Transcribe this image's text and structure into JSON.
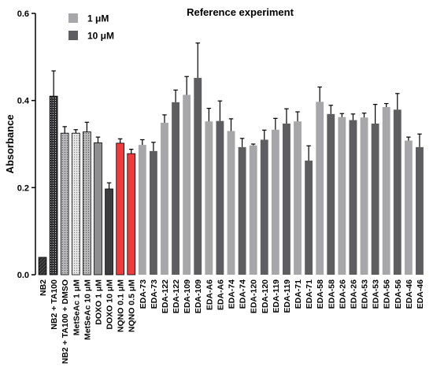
{
  "chart_data": {
    "type": "bar",
    "title": "Reference experiment",
    "xlabel": "",
    "ylabel": "Absorbance",
    "ylim": [
      0,
      0.6
    ],
    "yticks": [
      "0.0",
      "0.2",
      "0.4",
      "0.6"
    ],
    "grid": false,
    "legend": {
      "placement": "top-left",
      "entries": [
        {
          "label": "1 μM",
          "color": "#a7a7a9"
        },
        {
          "label": "10 μM",
          "color": "#5e5e60"
        }
      ]
    },
    "categories": [
      "NB2",
      "NB2 + TA100",
      "NB2 + TA100 + DMSO",
      "MetSeAc 1 μM",
      "MetSeAc 10 μM",
      "DOXO 1 μM",
      "DOXO 10 μM",
      "NQNO 0.1 μM",
      "NQNO 0.5 μM",
      "EDA-73",
      "EDA-73",
      "EDA-122",
      "EDA-122",
      "EDA-109",
      "EDA-109",
      "EDA-A6",
      "EDA-A6",
      "EDA-74",
      "EDA-74",
      "EDA-120",
      "EDA-120",
      "EDA-119",
      "EDA-119",
      "EDA-71",
      "EDA-71",
      "EDA-58",
      "EDA-58",
      "EDA-26",
      "EDA-26",
      "EDA-53",
      "EDA-53",
      "EDA-56",
      "EDA-56",
      "EDA-46",
      "EDA-46"
    ],
    "values": [
      0.04,
      0.41,
      0.325,
      0.325,
      0.328,
      0.303,
      0.197,
      0.302,
      0.278,
      0.298,
      0.284,
      0.349,
      0.396,
      0.413,
      0.452,
      0.352,
      0.353,
      0.33,
      0.293,
      0.297,
      0.31,
      0.333,
      0.347,
      0.352,
      0.262,
      0.397,
      0.369,
      0.362,
      0.355,
      0.361,
      0.347,
      0.385,
      0.379,
      0.308,
      0.293
    ],
    "errors": [
      0.0,
      0.058,
      0.015,
      0.008,
      0.022,
      0.013,
      0.014,
      0.01,
      0.01,
      0.012,
      0.02,
      0.018,
      0.028,
      0.042,
      0.08,
      0.03,
      0.046,
      0.028,
      0.02,
      0.003,
      0.022,
      0.026,
      0.034,
      0.022,
      0.034,
      0.034,
      0.02,
      0.008,
      0.014,
      0.01,
      0.044,
      0.008,
      0.037,
      0.008,
      0.03
    ],
    "bar_styles": [
      "diagonal-black",
      "dots-dark",
      "dots-gray",
      "dots-light",
      "dots-gray",
      "solid-gray",
      "solid-dark",
      "solid-red",
      "solid-red",
      "1",
      "10",
      "1",
      "10",
      "1",
      "10",
      "1",
      "10",
      "1",
      "10",
      "1",
      "10",
      "1",
      "10",
      "1",
      "10",
      "1",
      "10",
      "1",
      "10",
      "1",
      "10",
      "1",
      "10",
      "1",
      "10"
    ],
    "colors": {
      "1uM": "#a7a7a9",
      "10uM": "#5e5e60",
      "red": "#ef3b3b",
      "solid_gray": "#8e8e90",
      "solid_dark": "#3d3d3f"
    }
  }
}
